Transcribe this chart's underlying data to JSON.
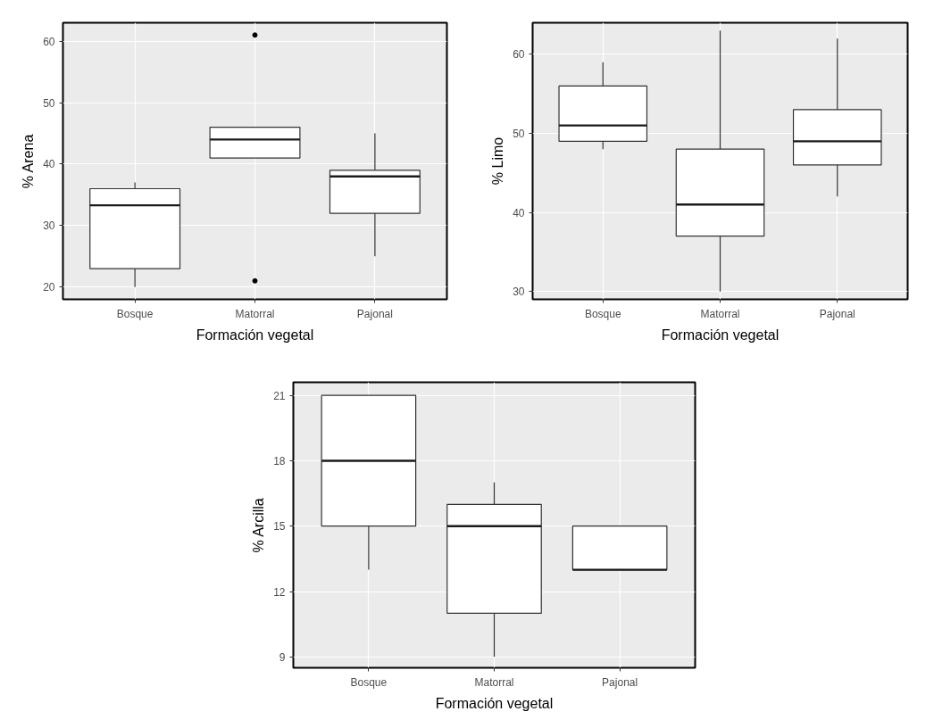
{
  "chart_data": [
    {
      "type": "box",
      "xlabel": "Formación vegetal",
      "ylabel": "% Arena",
      "categories": [
        "Bosque",
        "Matorral",
        "Pajonal"
      ],
      "ylim": [
        18,
        63
      ],
      "yticks": [
        20,
        30,
        40,
        50,
        60
      ],
      "grid": true,
      "boxes": [
        {
          "low": 20,
          "q1": 23,
          "median": 33.3,
          "q3": 36,
          "high": 37
        },
        {
          "low": 41,
          "q1": 41,
          "median": 44,
          "q3": 46,
          "high": 46,
          "outliers": [
            61,
            21
          ]
        },
        {
          "low": 25,
          "q1": 32,
          "median": 38,
          "q3": 39,
          "high": 45
        }
      ]
    },
    {
      "type": "box",
      "xlabel": "Formación vegetal",
      "ylabel": "% Limo",
      "categories": [
        "Bosque",
        "Matorral",
        "Pajonal"
      ],
      "ylim": [
        29,
        64
      ],
      "yticks": [
        30,
        40,
        50,
        60
      ],
      "grid": true,
      "boxes": [
        {
          "low": 48,
          "q1": 49,
          "median": 51,
          "q3": 56,
          "high": 59
        },
        {
          "low": 30,
          "q1": 37,
          "median": 41,
          "q3": 48,
          "high": 63
        },
        {
          "low": 42,
          "q1": 46,
          "median": 49,
          "q3": 53,
          "high": 62
        }
      ]
    },
    {
      "type": "box",
      "xlabel": "Formación vegetal",
      "ylabel": "% Arcilla",
      "categories": [
        "Bosque",
        "Matorral",
        "Pajonal"
      ],
      "ylim": [
        8.5,
        21.6
      ],
      "yticks": [
        9,
        12,
        15,
        18,
        21
      ],
      "grid": true,
      "boxes": [
        {
          "low": 13,
          "q1": 15,
          "median": 18,
          "q3": 21,
          "high": 21
        },
        {
          "low": 9,
          "q1": 11,
          "median": 15,
          "q3": 16,
          "high": 17
        },
        {
          "low": 13,
          "q1": 13,
          "median": 13,
          "q3": 15,
          "high": 15
        }
      ]
    }
  ]
}
